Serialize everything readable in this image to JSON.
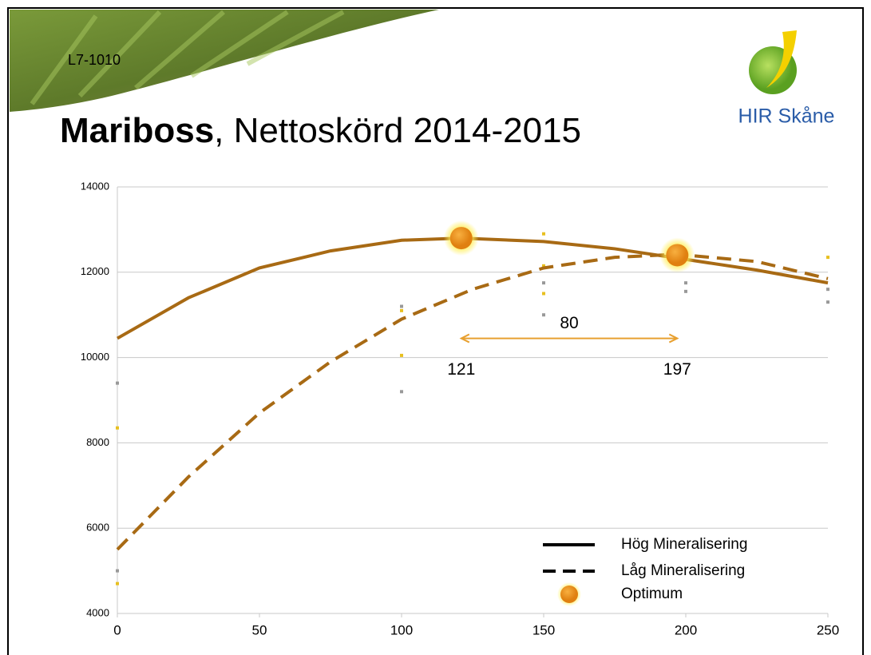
{
  "slide_code": "L7-1010",
  "logo_text": "HIR Skåne",
  "chart_data": {
    "type": "line",
    "title_bold": "Mariboss",
    "title_rest": ", Nettoskörd 2014-2015",
    "xlim": [
      0,
      250
    ],
    "xticks": [
      0,
      50,
      100,
      150,
      200,
      250
    ],
    "ylim": [
      4000,
      14000
    ],
    "yticks": [
      4000,
      6000,
      8000,
      10000,
      12000,
      14000
    ],
    "grid": true,
    "legend": "bottom-right",
    "series": [
      {
        "name": "Hög Mineralisering",
        "color": "#a86a14",
        "dash": "solid",
        "x": [
          0,
          25,
          50,
          75,
          100,
          121,
          150,
          175,
          200,
          225,
          250
        ],
        "values": [
          10450,
          11400,
          12100,
          12500,
          12750,
          12800,
          12720,
          12550,
          12300,
          12050,
          11750
        ]
      },
      {
        "name": "Låg Mineralisering",
        "color": "#a86a14",
        "dash": "dashed",
        "x": [
          0,
          25,
          50,
          75,
          100,
          125,
          150,
          175,
          197,
          225,
          250
        ],
        "values": [
          5500,
          7200,
          8700,
          9900,
          10900,
          11600,
          12100,
          12350,
          12420,
          12250,
          11850
        ]
      }
    ],
    "optimum": {
      "name": "Optimum",
      "color": "#f0a020",
      "x": [
        121,
        197
      ],
      "values": [
        12800,
        12400
      ]
    },
    "dots": [
      {
        "color": "#999999",
        "x": [
          0,
          0,
          100,
          100,
          150,
          150,
          200,
          200,
          250,
          250
        ],
        "values": [
          9400,
          5000,
          11200,
          9200,
          11750,
          11000,
          11750,
          11550,
          11600,
          11300
        ]
      },
      {
        "color": "#e8c020",
        "x": [
          0,
          0,
          100,
          100,
          150,
          150,
          150,
          200,
          250
        ],
        "values": [
          8350,
          4700,
          10050,
          11100,
          12150,
          11500,
          12900,
          12300,
          12350
        ]
      }
    ],
    "annotation": {
      "difference": 80,
      "from": 121,
      "to": 197,
      "y": 10450,
      "color": "#e8a030"
    }
  }
}
